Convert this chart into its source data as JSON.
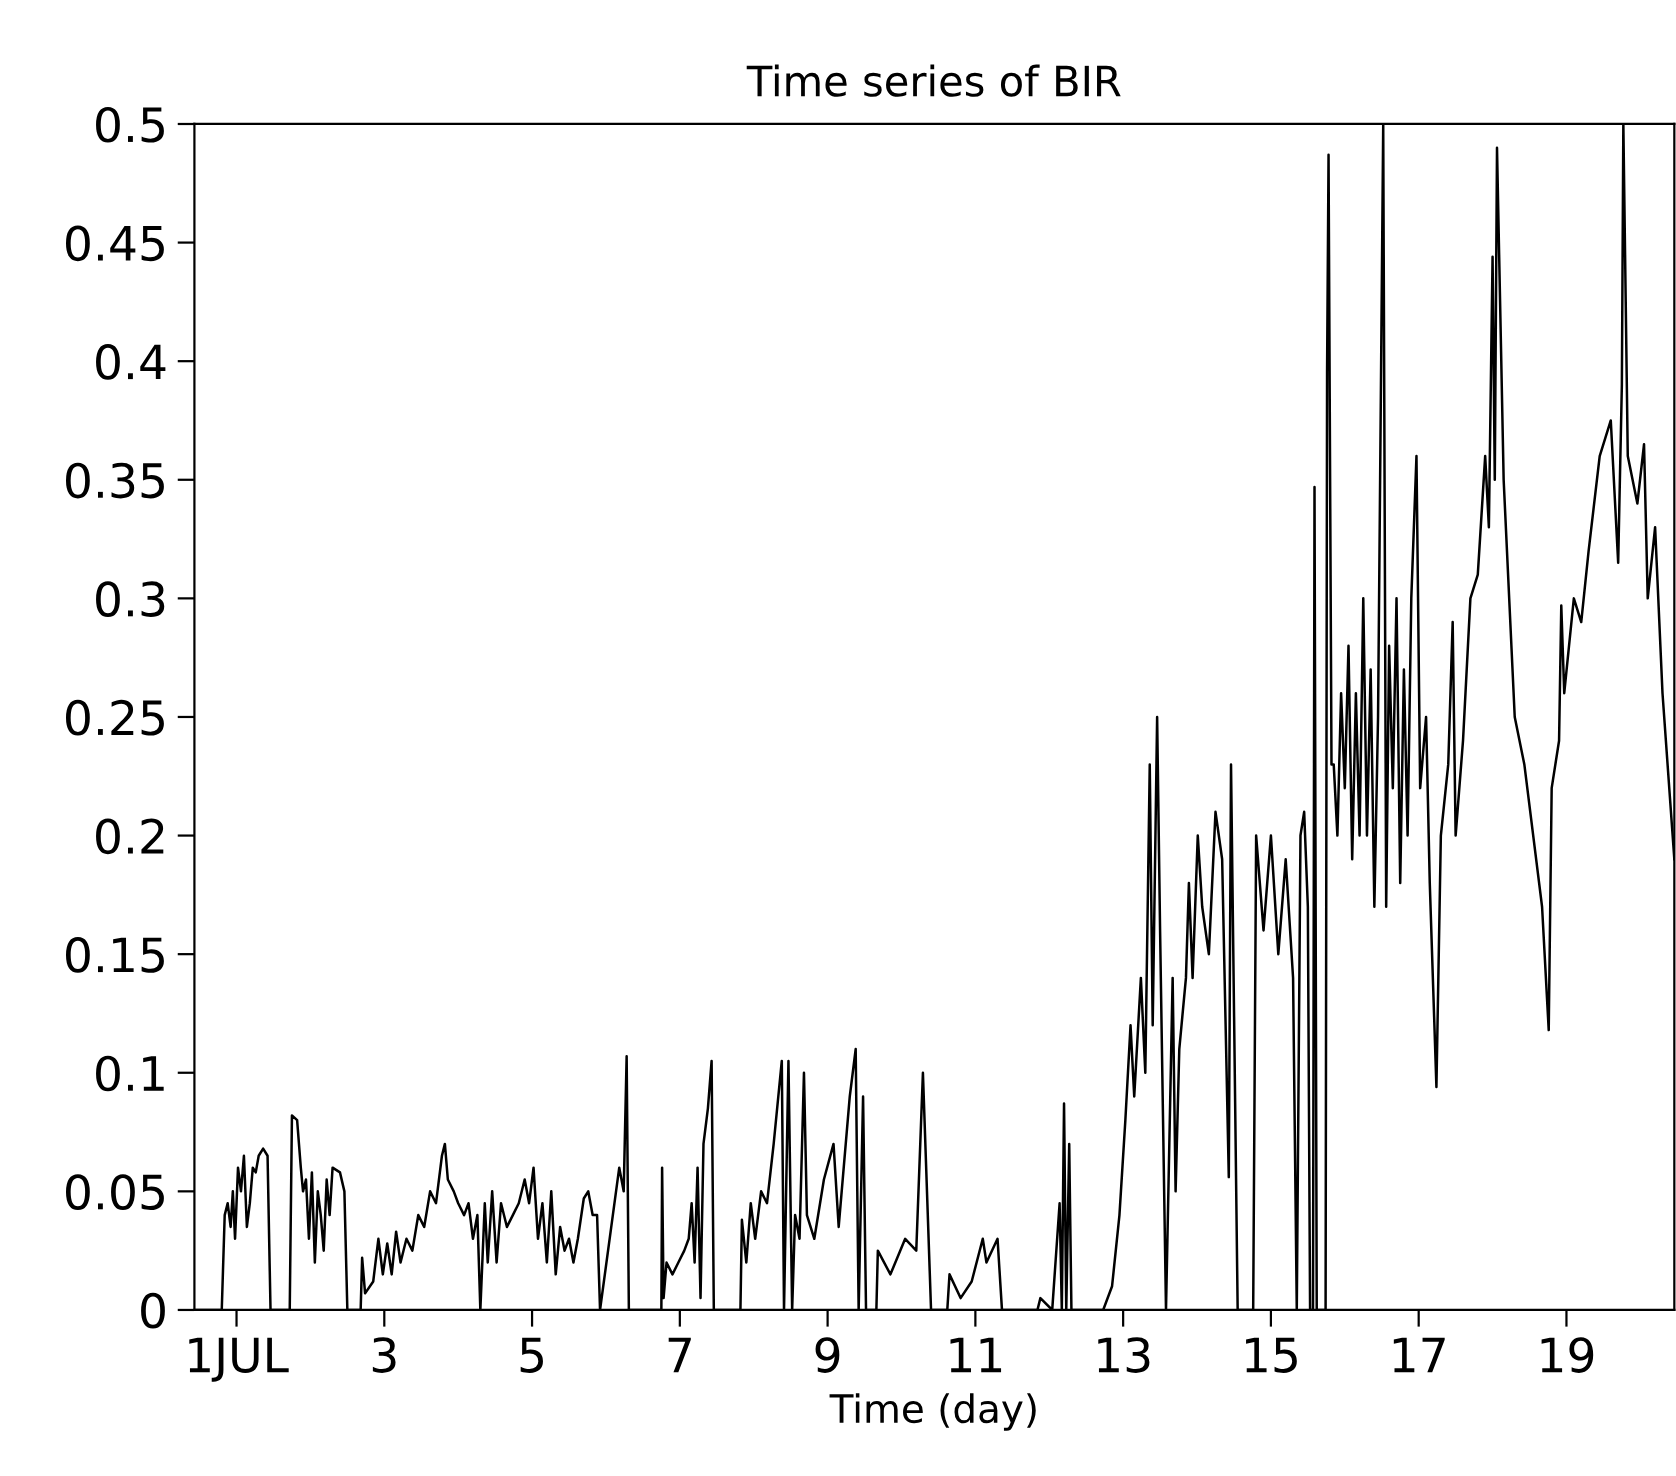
{
  "chart_data": {
    "type": "line",
    "title": "Time series of BIR",
    "xlabel": "Time (day)",
    "xlim": [
      0.43,
      20.46
    ],
    "ylim": [
      0,
      0.5
    ],
    "xticks": [
      {
        "value": 1,
        "label": "1JUL"
      },
      3,
      5,
      7,
      9,
      11,
      13,
      15,
      17,
      19
    ],
    "yticks": [
      0,
      0.05,
      0.1,
      0.15,
      0.2,
      0.25,
      0.3,
      0.35,
      0.4,
      0.45,
      0.5
    ],
    "grid": false,
    "marker": "none",
    "line_style": "solid",
    "series": [
      {
        "color": "#000000",
        "x": [
          0.43,
          0.8,
          0.84,
          0.88,
          0.92,
          0.95,
          0.98,
          1.02,
          1.06,
          1.1,
          1.14,
          1.18,
          1.22,
          1.26,
          1.3,
          1.36,
          1.42,
          1.46,
          1.72,
          1.75,
          1.82,
          1.87,
          1.9,
          1.94,
          1.98,
          2.02,
          2.06,
          2.1,
          2.14,
          2.18,
          2.22,
          2.26,
          2.3,
          2.4,
          2.46,
          2.5,
          2.68,
          2.7,
          2.74,
          2.85,
          2.92,
          2.98,
          3.04,
          3.1,
          3.16,
          3.22,
          3.3,
          3.38,
          3.46,
          3.54,
          3.62,
          3.7,
          3.78,
          3.82,
          3.86,
          3.94,
          4.0,
          4.08,
          4.14,
          4.2,
          4.26,
          4.3,
          4.36,
          4.4,
          4.46,
          4.52,
          4.58,
          4.66,
          4.74,
          4.82,
          4.9,
          4.96,
          5.02,
          5.08,
          5.14,
          5.2,
          5.26,
          5.32,
          5.38,
          5.44,
          5.5,
          5.56,
          5.62,
          5.7,
          5.76,
          5.82,
          5.88,
          5.92,
          6.18,
          6.24,
          6.28,
          6.31,
          6.75,
          6.76,
          6.78,
          6.82,
          6.9,
          6.98,
          7.06,
          7.12,
          7.16,
          7.2,
          7.24,
          7.28,
          7.32,
          7.38,
          7.43,
          7.46,
          7.82,
          7.84,
          7.9,
          7.96,
          8.02,
          8.1,
          8.18,
          8.27,
          8.38,
          8.41,
          8.47,
          8.52,
          8.56,
          8.62,
          8.68,
          8.72,
          8.82,
          8.95,
          9.08,
          9.15,
          9.3,
          9.38,
          9.42,
          9.48,
          9.52,
          9.66,
          9.68,
          9.85,
          10.05,
          10.2,
          10.29,
          10.4,
          10.62,
          10.65,
          10.8,
          10.95,
          11.1,
          11.15,
          11.3,
          11.36,
          11.84,
          11.88,
          12.04,
          12.14,
          12.17,
          12.2,
          12.23,
          12.27,
          12.3,
          12.73,
          12.85,
          12.95,
          13.03,
          13.1,
          13.15,
          13.24,
          13.3,
          13.36,
          13.4,
          13.46,
          13.5,
          13.58,
          13.67,
          13.71,
          13.76,
          13.85,
          13.89,
          13.94,
          14.01,
          14.07,
          14.16,
          14.25,
          14.34,
          14.43,
          14.46,
          14.55,
          14.57,
          14.76,
          14.8,
          14.9,
          15.0,
          15.1,
          15.2,
          15.3,
          15.35,
          15.4,
          15.45,
          15.5,
          15.53,
          15.57,
          15.59,
          15.62,
          15.74,
          15.76,
          15.78,
          15.82,
          15.85,
          15.9,
          15.95,
          16.0,
          16.05,
          16.1,
          16.15,
          16.2,
          16.25,
          16.3,
          16.35,
          16.4,
          16.45,
          16.52,
          16.56,
          16.6,
          16.65,
          16.7,
          16.75,
          16.8,
          16.85,
          16.9,
          16.97,
          17.02,
          17.1,
          17.15,
          17.24,
          17.3,
          17.4,
          17.46,
          17.5,
          17.6,
          17.7,
          17.8,
          17.9,
          17.95,
          18.0,
          18.03,
          18.06,
          18.15,
          18.3,
          18.43,
          18.67,
          18.76,
          18.8,
          18.9,
          18.93,
          18.97,
          19.1,
          19.2,
          19.3,
          19.45,
          19.6,
          19.7,
          19.75,
          19.77,
          19.83,
          19.96,
          20.05,
          20.1,
          20.2,
          20.3,
          20.46
        ],
        "values": [
          0,
          0,
          0.04,
          0.045,
          0.035,
          0.05,
          0.03,
          0.06,
          0.05,
          0.065,
          0.035,
          0.045,
          0.06,
          0.058,
          0.065,
          0.068,
          0.065,
          0,
          0,
          0.082,
          0.08,
          0.06,
          0.05,
          0.055,
          0.03,
          0.058,
          0.02,
          0.05,
          0.04,
          0.025,
          0.055,
          0.04,
          0.06,
          0.058,
          0.05,
          0,
          0,
          0.022,
          0.007,
          0.012,
          0.03,
          0.015,
          0.028,
          0.015,
          0.033,
          0.02,
          0.03,
          0.025,
          0.04,
          0.035,
          0.05,
          0.045,
          0.065,
          0.07,
          0.055,
          0.05,
          0.045,
          0.04,
          0.045,
          0.03,
          0.04,
          0,
          0.045,
          0.02,
          0.05,
          0.02,
          0.045,
          0.035,
          0.04,
          0.045,
          0.055,
          0.045,
          0.06,
          0.03,
          0.045,
          0.02,
          0.05,
          0.015,
          0.035,
          0.025,
          0.03,
          0.02,
          0.03,
          0.047,
          0.05,
          0.04,
          0.04,
          0,
          0.06,
          0.05,
          0.107,
          0,
          0,
          0.06,
          0.005,
          0.02,
          0.015,
          0.02,
          0.025,
          0.03,
          0.045,
          0.02,
          0.06,
          0.005,
          0.07,
          0.085,
          0.105,
          0,
          0,
          0.038,
          0.02,
          0.045,
          0.03,
          0.05,
          0.045,
          0.07,
          0.105,
          0,
          0.105,
          0,
          0.04,
          0.03,
          0.1,
          0.04,
          0.03,
          0.055,
          0.07,
          0.035,
          0.09,
          0.11,
          0,
          0.09,
          0,
          0,
          0.025,
          0.015,
          0.03,
          0.025,
          0.1,
          0,
          0,
          0.015,
          0.005,
          0.012,
          0.03,
          0.02,
          0.03,
          0,
          0,
          0.005,
          0,
          0.045,
          0,
          0.087,
          0,
          0.07,
          0,
          0,
          0.01,
          0.04,
          0.08,
          0.12,
          0.09,
          0.14,
          0.1,
          0.23,
          0.12,
          0.25,
          0.16,
          0,
          0.14,
          0.05,
          0.11,
          0.14,
          0.18,
          0.14,
          0.2,
          0.17,
          0.15,
          0.21,
          0.19,
          0.056,
          0.23,
          0,
          0,
          0,
          0.2,
          0.16,
          0.2,
          0.15,
          0.19,
          0.14,
          0,
          0.2,
          0.21,
          0.17,
          0,
          0,
          0.347,
          0,
          0,
          0.395,
          0.487,
          0.23,
          0.23,
          0.2,
          0.26,
          0.22,
          0.28,
          0.19,
          0.26,
          0.2,
          0.3,
          0.2,
          0.27,
          0.17,
          0.25,
          0.5,
          0.17,
          0.28,
          0.22,
          0.3,
          0.18,
          0.27,
          0.2,
          0.3,
          0.36,
          0.22,
          0.25,
          0.18,
          0.094,
          0.2,
          0.23,
          0.29,
          0.2,
          0.24,
          0.3,
          0.31,
          0.36,
          0.33,
          0.444,
          0.35,
          0.49,
          0.35,
          0.25,
          0.23,
          0.17,
          0.118,
          0.22,
          0.24,
          0.297,
          0.26,
          0.3,
          0.29,
          0.32,
          0.36,
          0.375,
          0.315,
          0.39,
          0.5,
          0.36,
          0.34,
          0.365,
          0.3,
          0.33,
          0.26,
          0.19
        ]
      }
    ]
  }
}
